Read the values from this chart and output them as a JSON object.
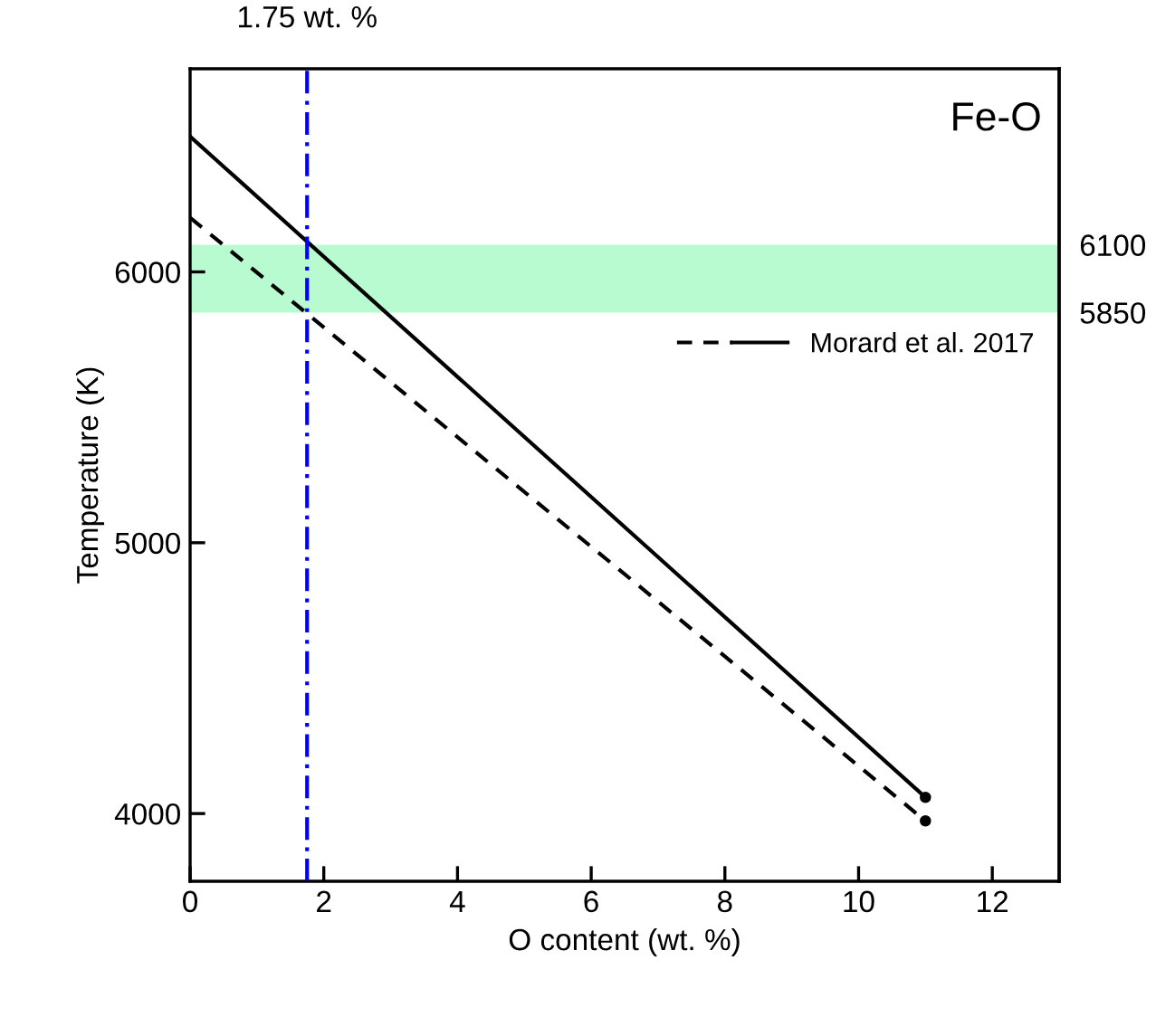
{
  "chart_data": {
    "type": "line",
    "xlabel": "O content (wt. %)",
    "ylabel": "Temperature (K)",
    "x": [
      0,
      11
    ],
    "series": [
      {
        "color": "#000000",
        "line_style": "dashed",
        "values": [
          6200,
          3973
        ]
      },
      {
        "name": "Morard et al. 2017",
        "color": "#000000",
        "line_style": "solid",
        "values": [
          6500,
          4060
        ]
      }
    ],
    "xlim": [
      0,
      13
    ],
    "xticks": [
      0,
      2,
      4,
      6,
      8,
      10,
      12
    ],
    "ylim": [
      3750,
      6750
    ],
    "yticks": [
      4000,
      5000,
      6000
    ],
    "y2lim": [
      3750,
      6750
    ],
    "y2ticks": [
      5850,
      6100
    ],
    "ref_lines": [
      {
        "axis": "x",
        "value": 1.75,
        "label": "1.75 wt. %",
        "color": "#0000ff",
        "line_style": "dashdot"
      }
    ],
    "bands": [
      {
        "axis": "y",
        "from": 5850,
        "to": 6100,
        "color": "#b9fbd0"
      }
    ],
    "annotations": [
      "Fe-O"
    ],
    "legend": "right",
    "grid": false
  }
}
